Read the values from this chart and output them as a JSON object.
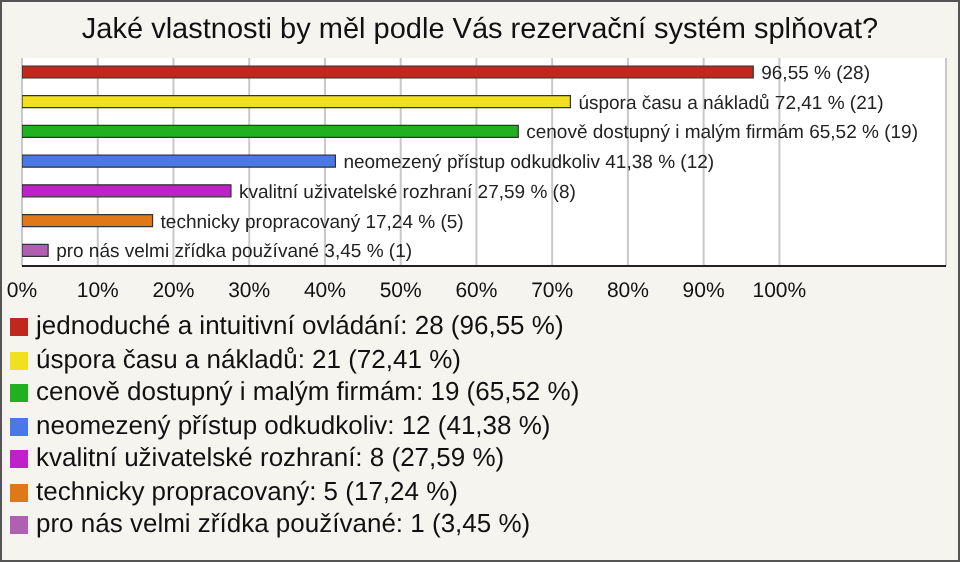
{
  "chart_data": {
    "type": "bar",
    "orientation": "horizontal",
    "stacked": true,
    "title": "Jaké vlastnosti by měl podle Vás rezervační systém splňovat?",
    "categories": [
      null,
      null,
      null,
      null,
      null,
      null,
      null
    ],
    "series": [
      {
        "name": "jednoduché a intuitivní ovládání: 28 (96,55 %)",
        "color": "#c0281e",
        "values": [
          96.55,
          null,
          null,
          null,
          null,
          null,
          null
        ],
        "value_labels": [
          "96,55 % (28)",
          null,
          null,
          null,
          null,
          null,
          null
        ]
      },
      {
        "name": "úspora času a nákladů: 21 (72,41 %)",
        "color": "#f0e020",
        "values": [
          null,
          72.41,
          null,
          null,
          null,
          null,
          null
        ],
        "value_labels": [
          null,
          "úspora času a nákladů 72,41 % (21)",
          null,
          null,
          null,
          null,
          null
        ]
      },
      {
        "name": "cenově dostupný i malým firmám: 19 (65,52 %)",
        "color": "#20b020",
        "values": [
          null,
          null,
          65.52,
          null,
          null,
          null,
          null
        ],
        "value_labels": [
          null,
          null,
          "cenově dostupný i malým firmám 65,52 % (19)",
          null,
          null,
          null,
          null
        ]
      },
      {
        "name": "neomezený přístup odkudkoliv: 12 (41,38 %)",
        "color": "#4a78e6",
        "values": [
          null,
          null,
          null,
          41.38,
          null,
          null,
          null
        ],
        "value_labels": [
          null,
          null,
          null,
          "neomezený přístup odkudkoliv 41,38 % (12)",
          null,
          null,
          null
        ]
      },
      {
        "name": "kvalitní uživatelské rozhraní: 8 (27,59 %)",
        "color": "#c020c8",
        "values": [
          null,
          null,
          null,
          null,
          27.59,
          null,
          null
        ],
        "value_labels": [
          null,
          null,
          null,
          null,
          "kvalitní uživatelské rozhraní 27,59 % (8)",
          null,
          null
        ]
      },
      {
        "name": "technicky propracovaný: 5 (17,24 %)",
        "color": "#e07818",
        "values": [
          null,
          null,
          null,
          null,
          null,
          17.24,
          null
        ],
        "value_labels": [
          null,
          null,
          null,
          null,
          null,
          "technicky propracovaný 17,24 % (5)",
          null
        ]
      },
      {
        "name": "pro nás velmi zřídka používané: 1 (3,45 %)",
        "color": "#b060b0",
        "values": [
          null,
          null,
          null,
          null,
          null,
          null,
          3.45
        ],
        "value_labels": [
          null,
          null,
          null,
          null,
          null,
          null,
          "pro nás velmi zřídka používané 3,45 % (1)"
        ]
      }
    ],
    "xlim": [
      0,
      122
    ],
    "xticks": [
      {
        "value": 0,
        "label": "0%"
      },
      {
        "value": 10,
        "label": "10%"
      },
      {
        "value": 20,
        "label": "20%"
      },
      {
        "value": 30,
        "label": "30%"
      },
      {
        "value": 40,
        "label": "40%"
      },
      {
        "value": 50,
        "label": "50%"
      },
      {
        "value": 60,
        "label": "60%"
      },
      {
        "value": 70,
        "label": "70%"
      },
      {
        "value": 80,
        "label": "80%"
      },
      {
        "value": 90,
        "label": "90%"
      },
      {
        "value": 100,
        "label": "100%"
      }
    ],
    "grid": "x",
    "legend": "bottom",
    "tick_labels": "x"
  }
}
